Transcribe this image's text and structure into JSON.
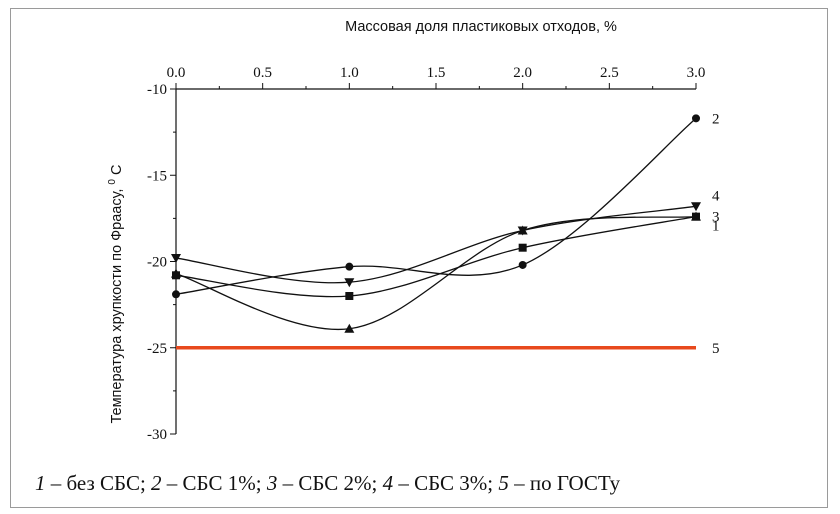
{
  "chart_data": {
    "type": "line",
    "xlabel": "Массовая доля пластиковых отходов, %",
    "ylabel": "Температура хрупкости по Фраасу,",
    "ylabel_unit": "C",
    "ylabel_unit_sup": "0",
    "xlim": [
      0.0,
      3.0
    ],
    "ylim": [
      -30,
      -10
    ],
    "x_ticks": [
      "0.0",
      "0.5",
      "1.0",
      "1.5",
      "2.0",
      "2.5",
      "3.0"
    ],
    "y_ticks": [
      "-10",
      "-15",
      "-20",
      "-25",
      "-30"
    ],
    "x_axis_position": "top",
    "series": [
      {
        "name": "1",
        "marker": "triangle-up",
        "x": [
          0,
          1,
          2,
          3
        ],
        "y": [
          -20.7,
          -23.9,
          -18.2,
          -17.4
        ]
      },
      {
        "name": "2",
        "marker": "circle",
        "x": [
          0,
          1,
          2,
          3
        ],
        "y": [
          -21.9,
          -20.3,
          -20.2,
          -11.7
        ]
      },
      {
        "name": "3",
        "marker": "square",
        "x": [
          0,
          1,
          2,
          3
        ],
        "y": [
          -20.8,
          -22.0,
          -19.2,
          -17.4
        ]
      },
      {
        "name": "4",
        "marker": "triangle-down",
        "x": [
          0,
          1,
          2,
          3
        ],
        "y": [
          -19.8,
          -21.2,
          -18.2,
          -16.8
        ]
      },
      {
        "name": "5",
        "marker": "none",
        "color": "#e8491d",
        "x": [
          0,
          3
        ],
        "y": [
          -25,
          -25
        ]
      }
    ],
    "caption": {
      "parts": [
        {
          "num": "1",
          "text": " – без СБС; "
        },
        {
          "num": "2",
          "text": " – СБС 1%; "
        },
        {
          "num": "3",
          "text": " – СБС 2%; "
        },
        {
          "num": "4",
          "text": " – СБС 3%; "
        },
        {
          "num": "5",
          "text": " – по ГОСТу"
        }
      ]
    }
  }
}
